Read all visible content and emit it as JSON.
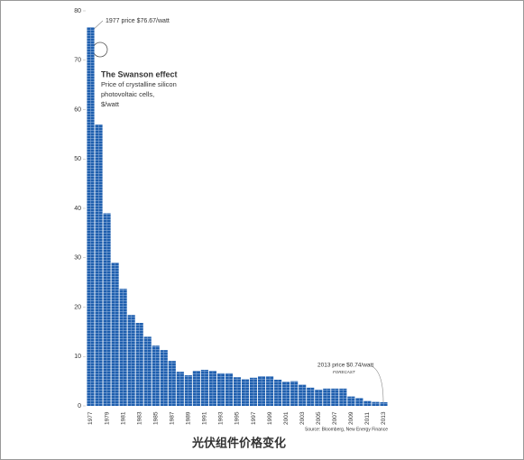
{
  "chart_data": {
    "type": "bar",
    "title": "The Swanson effect",
    "subtitle": [
      "Price of crystalline silicon",
      "photovoltaic cells,",
      "$/watt"
    ],
    "annotations": [
      "1977 price $76.67/watt",
      "2013 price $0.74/watt",
      "FORECAST"
    ],
    "source": "Source: Bloomberg, New Energy Finance",
    "caption": "光伏组件价格变化",
    "categories": [
      "1977",
      null,
      "1979",
      null,
      "1981",
      null,
      "1983",
      null,
      "1985",
      null,
      "1987",
      null,
      "1989",
      null,
      "1991",
      null,
      "1993",
      null,
      "1995",
      null,
      "1997",
      null,
      "1999",
      null,
      "2001",
      null,
      "2003",
      null,
      "2005",
      null,
      "2007",
      null,
      "2009",
      null,
      "2011",
      null,
      "2013"
    ],
    "values": [
      76.67,
      57,
      39,
      29,
      23.7,
      18.4,
      16.8,
      14,
      12.2,
      11.3,
      9.1,
      6.9,
      6.2,
      7.1,
      7.3,
      7.1,
      6.6,
      6.6,
      5.8,
      5.4,
      5.7,
      6,
      6,
      5.3,
      4.9,
      5,
      4.3,
      3.7,
      3.3,
      3.5,
      3.5,
      3.5,
      1.9,
      1.6,
      1,
      0.8,
      0.74
    ],
    "color": "#1f5fae",
    "ylim": [
      0,
      80
    ],
    "yticks": [
      0,
      10,
      20,
      30,
      40,
      50,
      60,
      70,
      80
    ]
  }
}
